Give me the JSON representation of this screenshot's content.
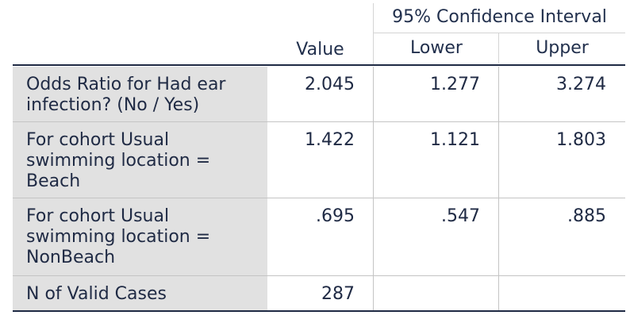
{
  "header": {
    "ci_label": "95% Confidence Interval",
    "value": "Value",
    "lower": "Lower",
    "upper": "Upper"
  },
  "rows": [
    {
      "label": "Odds Ratio for Had ear infection? (No / Yes)",
      "value": "2.045",
      "lower": "1.277",
      "upper": "3.274"
    },
    {
      "label": "For cohort Usual swimming location = Beach",
      "value": "1.422",
      "lower": "1.121",
      "upper": "1.803"
    },
    {
      "label": "For cohort Usual swimming location = NonBeach",
      "value": ".695",
      "lower": ".547",
      "upper": ".885"
    },
    {
      "label": "N of Valid Cases",
      "value": "287",
      "lower": "",
      "upper": ""
    }
  ]
}
